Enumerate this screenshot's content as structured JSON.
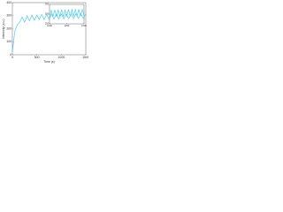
{
  "chart_data": [
    {
      "type": "line",
      "xlabel": "Time (s)",
      "ylabel": "Intensity (a.u.)",
      "x": [
        0,
        50,
        100,
        150,
        200,
        250,
        300,
        350,
        400,
        450,
        500,
        550,
        600,
        650,
        700,
        750,
        800,
        850,
        900,
        950,
        1000,
        1050,
        1100,
        1150,
        1200,
        1250,
        1300,
        1350,
        1400,
        1450,
        1500
      ],
      "series": [
        {
          "color": "#33c6e8",
          "values": [
            20,
            180,
            230,
            250,
            290,
            250,
            300,
            260,
            305,
            265,
            305,
            270,
            310,
            270,
            310,
            272,
            312,
            275,
            312,
            275,
            313,
            276,
            314,
            277,
            314,
            278,
            315,
            278,
            315,
            279,
            316
          ]
        }
      ],
      "xlim": [
        0,
        1500
      ],
      "xticks": [
        0,
        500,
        1000,
        1500
      ],
      "ylim": [
        0,
        400
      ],
      "yticks": [
        0,
        100,
        200,
        300,
        400
      ]
    },
    {
      "type": "line",
      "x": [
        1000,
        1025,
        1050,
        1075,
        1100,
        1125,
        1150,
        1175,
        1200,
        1225,
        1250,
        1275,
        1300,
        1325,
        1350,
        1375,
        1400,
        1425,
        1450,
        1475,
        1500
      ],
      "series": [
        {
          "color": "#33c6e8",
          "values": [
            285,
            320,
            288,
            322,
            287,
            321,
            289,
            323,
            288,
            322,
            290,
            324,
            289,
            323,
            291,
            324,
            290,
            325,
            291,
            325,
            292
          ]
        }
      ],
      "xlim": [
        1000,
        1500
      ],
      "xticks": [
        1000,
        1250,
        1500
      ],
      "ylim": [
        250,
        350
      ],
      "yticks": [
        250,
        300,
        350
      ]
    }
  ]
}
